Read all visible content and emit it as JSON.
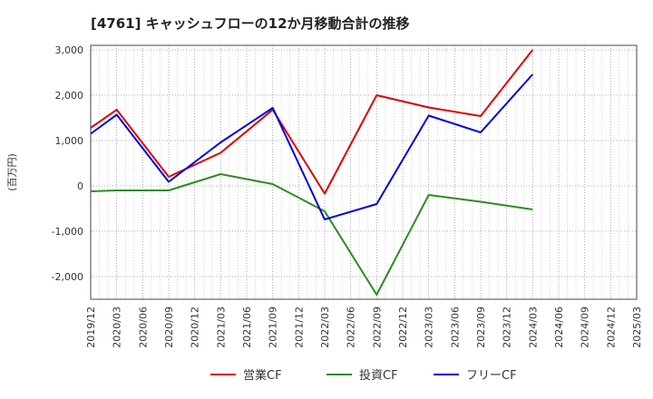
{
  "chart_data": {
    "type": "line",
    "title": "[4761]  キャッシュフローの12か月移動合計の推移",
    "ylabel": "(百万円)",
    "xlabel": "",
    "ylim": [
      -2500,
      3100
    ],
    "yticks": [
      3000,
      2000,
      1000,
      0,
      -1000,
      -2000
    ],
    "ytick_labels": [
      "3,000",
      "2,000",
      "1,000",
      "0",
      "-1,000",
      "-2,000"
    ],
    "x_categories": [
      "2019/12",
      "2020/03",
      "2020/06",
      "2020/09",
      "2020/12",
      "2021/03",
      "2021/06",
      "2021/09",
      "2021/12",
      "2022/03",
      "2022/06",
      "2022/09",
      "2022/12",
      "2023/03",
      "2023/06",
      "2023/09",
      "2023/12",
      "2024/03",
      "2024/06",
      "2024/09",
      "2024/12",
      "2025/03"
    ],
    "grid": true,
    "legend_position": "bottom",
    "series": [
      {
        "name": "営業CF",
        "color": "#dd0000",
        "points": [
          [
            0,
            1280
          ],
          [
            1,
            1680
          ],
          [
            3,
            200
          ],
          [
            5,
            730
          ],
          [
            7,
            1680
          ],
          [
            9,
            -170
          ],
          [
            11,
            2000
          ],
          [
            13,
            1730
          ],
          [
            15,
            1540
          ],
          [
            17,
            3000
          ]
        ]
      },
      {
        "name": "投資CF",
        "color": "#2e8b22",
        "points": [
          [
            0,
            -120
          ],
          [
            1,
            -100
          ],
          [
            3,
            -100
          ],
          [
            5,
            260
          ],
          [
            7,
            40
          ],
          [
            9,
            -560
          ],
          [
            11,
            -2400
          ],
          [
            13,
            -200
          ],
          [
            15,
            -350
          ],
          [
            17,
            -520
          ]
        ]
      },
      {
        "name": "フリーCF",
        "color": "#0000dd",
        "points": [
          [
            0,
            1150
          ],
          [
            1,
            1570
          ],
          [
            3,
            90
          ],
          [
            5,
            960
          ],
          [
            7,
            1720
          ],
          [
            9,
            -740
          ],
          [
            11,
            -400
          ],
          [
            13,
            1550
          ],
          [
            15,
            1180
          ],
          [
            17,
            2460
          ]
        ]
      }
    ]
  }
}
